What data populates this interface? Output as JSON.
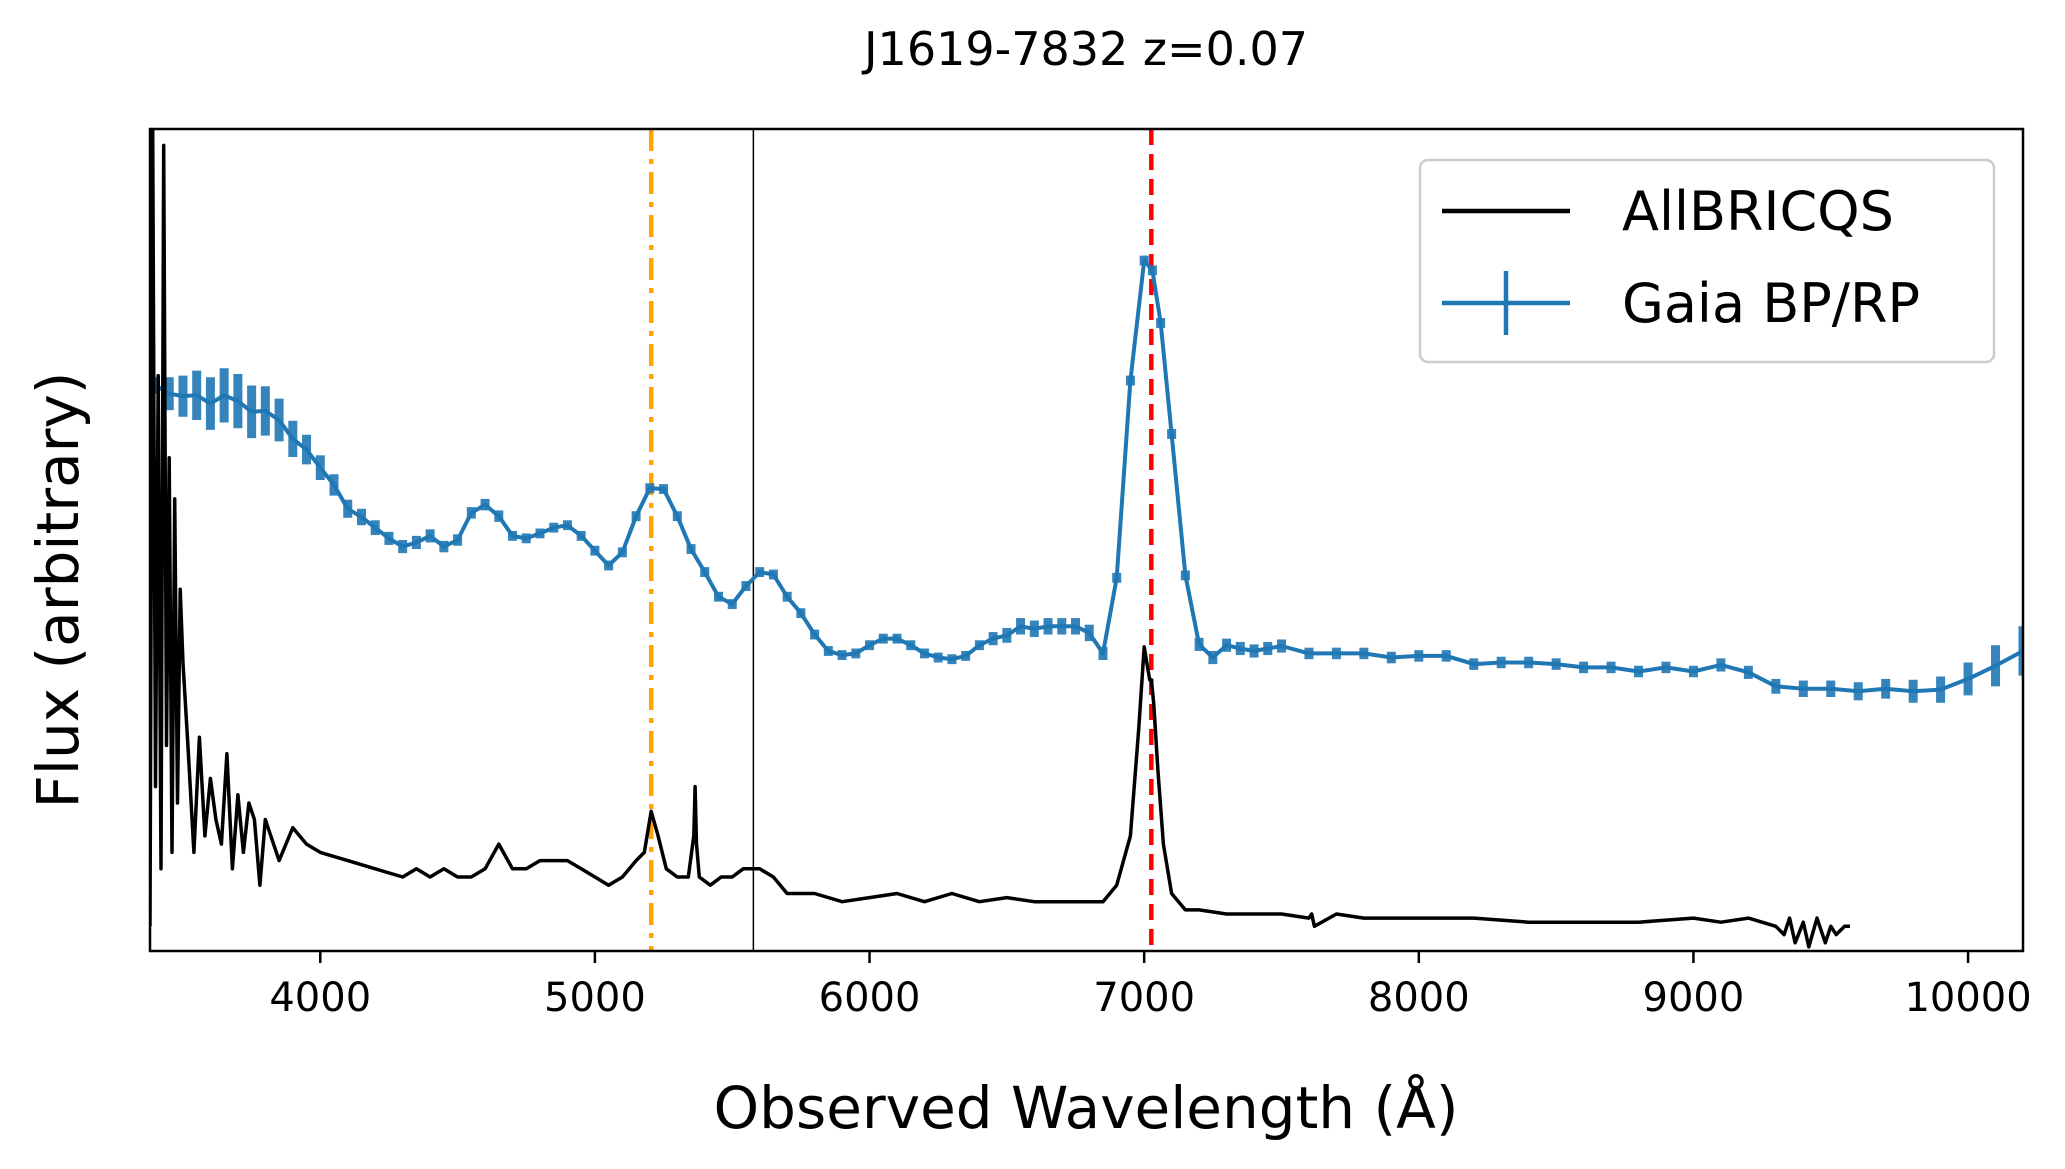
{
  "chart_data": {
    "type": "line",
    "title": "J1619-7832 z=0.07",
    "xlabel": "Observed Wavelength (Å)",
    "ylabel": "Flux (arbitrary)",
    "xlim": [
      3380,
      10200
    ],
    "ylim": [
      0,
      100
    ],
    "xticks": [
      4000,
      5000,
      6000,
      7000,
      8000,
      9000,
      10000
    ],
    "xtick_labels": [
      "4000",
      "5000",
      "6000",
      "7000",
      "8000",
      "9000",
      "10000"
    ],
    "yticks_shown": false,
    "legend": {
      "position": "top-right",
      "entries": [
        "AllBRICQS",
        "Gaia BP/RP"
      ]
    },
    "vlines": [
      {
        "x": 5205,
        "style": "dash-dot",
        "color": "#FFA500"
      },
      {
        "x": 5577,
        "style": "solid-thin",
        "color": "#000000"
      },
      {
        "x": 7026,
        "style": "dashed",
        "color": "#FF0000"
      }
    ],
    "series": [
      {
        "name": "Gaia BP/RP",
        "color": "#1F77B4",
        "error_bars": true,
        "x": [
          3400,
          3450,
          3500,
          3550,
          3600,
          3650,
          3700,
          3750,
          3800,
          3850,
          3900,
          3950,
          4000,
          4050,
          4100,
          4150,
          4200,
          4250,
          4300,
          4350,
          4400,
          4450,
          4500,
          4550,
          4600,
          4650,
          4700,
          4750,
          4800,
          4850,
          4900,
          4950,
          5000,
          5050,
          5100,
          5150,
          5200,
          5250,
          5300,
          5350,
          5400,
          5450,
          5500,
          5550,
          5600,
          5650,
          5700,
          5750,
          5800,
          5850,
          5900,
          5950,
          6000,
          6050,
          6100,
          6150,
          6200,
          6250,
          6300,
          6350,
          6400,
          6450,
          6500,
          6550,
          6600,
          6650,
          6700,
          6750,
          6800,
          6850,
          6900,
          6950,
          7000,
          7030,
          7060,
          7100,
          7150,
          7200,
          7250,
          7300,
          7350,
          7400,
          7450,
          7500,
          7600,
          7700,
          7800,
          7900,
          8000,
          8100,
          8200,
          8300,
          8400,
          8500,
          8600,
          8700,
          8800,
          8900,
          9000,
          9100,
          9200,
          9300,
          9400,
          9500,
          9600,
          9700,
          9800,
          9900,
          10000,
          10100,
          10200
        ],
        "y": [
          68.8,
          67.8,
          67.5,
          67.6,
          66.6,
          67.6,
          66.9,
          65.6,
          65.7,
          64.6,
          62.3,
          61.0,
          58.8,
          56.7,
          53.8,
          52.8,
          51.5,
          50.2,
          49.2,
          49.7,
          50.5,
          49.2,
          50.0,
          53.3,
          54.3,
          52.9,
          50.5,
          50.2,
          50.8,
          51.5,
          51.8,
          50.5,
          48.7,
          46.9,
          48.5,
          52.9,
          56.3,
          56.2,
          52.9,
          48.9,
          46.1,
          43.1,
          42.2,
          44.4,
          46.1,
          45.8,
          43.1,
          41.1,
          38.5,
          36.5,
          36.0,
          36.2,
          37.2,
          38.0,
          38.0,
          37.2,
          36.2,
          35.7,
          35.5,
          35.9,
          37.2,
          38.0,
          38.4,
          39.5,
          39.2,
          39.5,
          39.5,
          39.5,
          38.7,
          36.2,
          45.4,
          69.4,
          84.0,
          82.8,
          76.4,
          62.9,
          45.7,
          37.3,
          35.7,
          37.2,
          36.8,
          36.5,
          36.8,
          37.1,
          36.2,
          36.2,
          36.2,
          35.7,
          35.9,
          35.9,
          34.9,
          35.1,
          35.1,
          34.9,
          34.5,
          34.5,
          34.0,
          34.5,
          34.0,
          34.8,
          33.9,
          32.2,
          31.9,
          31.9,
          31.6,
          31.9,
          31.6,
          31.8,
          33.1,
          34.7,
          36.5
        ],
        "err": [
          1.0,
          2.0,
          2.5,
          3.0,
          3.2,
          3.3,
          3.3,
          3.2,
          3.0,
          2.6,
          2.2,
          1.8,
          1.5,
          1.3,
          1.1,
          1.0,
          0.9,
          0.8,
          0.8,
          0.8,
          0.8,
          0.7,
          0.7,
          0.7,
          0.7,
          0.7,
          0.6,
          0.6,
          0.6,
          0.6,
          0.6,
          0.6,
          0.6,
          0.6,
          0.6,
          0.6,
          0.6,
          0.6,
          0.6,
          0.6,
          0.6,
          0.6,
          0.6,
          0.6,
          0.6,
          0.6,
          0.6,
          0.6,
          0.6,
          0.6,
          0.6,
          0.6,
          0.6,
          0.6,
          0.6,
          0.6,
          0.6,
          0.6,
          0.6,
          0.6,
          0.6,
          0.8,
          0.9,
          1.0,
          1.0,
          1.0,
          1.0,
          1.0,
          1.0,
          0.8,
          0.6,
          0.6,
          0.6,
          0.6,
          0.6,
          0.6,
          0.6,
          0.8,
          0.8,
          0.8,
          0.8,
          0.8,
          0.8,
          0.8,
          0.7,
          0.7,
          0.7,
          0.7,
          0.7,
          0.7,
          0.7,
          0.7,
          0.7,
          0.7,
          0.7,
          0.7,
          0.7,
          0.7,
          0.7,
          0.8,
          0.8,
          0.9,
          1.0,
          1.0,
          1.1,
          1.2,
          1.4,
          1.6,
          2.0,
          2.5,
          3.0
        ]
      },
      {
        "name": "AllBRICQS",
        "color": "#000000",
        "error_bars": false,
        "x": [
          3380,
          3390,
          3400,
          3410,
          3420,
          3430,
          3440,
          3450,
          3460,
          3470,
          3480,
          3490,
          3500,
          3520,
          3540,
          3560,
          3580,
          3600,
          3620,
          3640,
          3660,
          3680,
          3700,
          3720,
          3740,
          3760,
          3780,
          3800,
          3850,
          3900,
          3950,
          4000,
          4100,
          4200,
          4300,
          4350,
          4400,
          4450,
          4500,
          4550,
          4600,
          4650,
          4700,
          4750,
          4800,
          4850,
          4900,
          4950,
          5000,
          5050,
          5100,
          5150,
          5180,
          5205,
          5230,
          5260,
          5300,
          5340,
          5360,
          5365,
          5370,
          5380,
          5420,
          5460,
          5500,
          5540,
          5560,
          5580,
          5600,
          5650,
          5700,
          5800,
          5900,
          6000,
          6100,
          6200,
          6300,
          6400,
          6500,
          6600,
          6700,
          6800,
          6850,
          6900,
          6950,
          6980,
          7000,
          7010,
          7020,
          7026,
          7035,
          7050,
          7070,
          7100,
          7150,
          7200,
          7300,
          7400,
          7500,
          7600,
          7610,
          7620,
          7700,
          7800,
          7900,
          8000,
          8200,
          8400,
          8600,
          8800,
          9000,
          9100,
          9200,
          9300,
          9330,
          9350,
          9370,
          9400,
          9420,
          9450,
          9480,
          9500,
          9520,
          9550,
          9570
        ],
        "y": [
          3,
          100,
          20,
          70,
          10,
          98,
          25,
          60,
          12,
          55,
          18,
          44,
          35,
          24,
          12,
          26,
          14,
          21,
          16,
          13,
          24,
          10,
          19,
          12,
          18,
          16,
          8,
          16,
          11,
          15,
          13,
          12,
          11,
          10,
          9,
          10,
          9,
          10,
          9,
          9,
          10,
          13,
          10,
          10,
          11,
          11,
          11,
          10,
          9,
          8,
          9,
          11,
          12,
          17,
          14,
          10,
          9,
          9,
          14,
          20,
          13,
          9,
          8,
          9,
          9,
          10,
          10,
          10,
          10,
          9,
          7,
          7,
          6,
          6.5,
          7,
          6,
          7,
          6,
          6.5,
          6,
          6,
          6,
          6,
          8,
          14,
          27,
          37,
          35,
          33,
          33,
          30,
          22,
          13,
          7,
          5,
          5,
          4.5,
          4.5,
          4.5,
          4,
          4.5,
          3,
          4.5,
          4,
          4,
          4,
          4,
          3.5,
          3.5,
          3.5,
          4,
          3.5,
          4,
          3,
          2,
          4,
          1,
          3.5,
          0.5,
          4,
          1,
          3,
          2,
          3,
          3
        ]
      }
    ]
  }
}
